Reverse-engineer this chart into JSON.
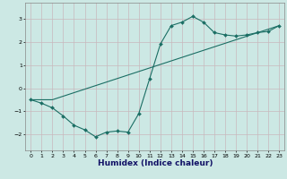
{
  "xlabel": "Humidex (Indice chaleur)",
  "bg_color": "#cce8e4",
  "line_color": "#1a6e64",
  "grid_color": "#c8b8bc",
  "xlim": [
    -0.5,
    23.5
  ],
  "ylim": [
    -2.7,
    3.7
  ],
  "xticks": [
    0,
    1,
    2,
    3,
    4,
    5,
    6,
    7,
    8,
    9,
    10,
    11,
    12,
    13,
    14,
    15,
    16,
    17,
    18,
    19,
    20,
    21,
    22,
    23
  ],
  "yticks": [
    -2,
    -1,
    0,
    1,
    2,
    3
  ],
  "curve1_x": [
    0,
    1,
    2,
    3,
    4,
    5,
    6,
    7,
    8,
    9,
    10,
    11,
    12,
    13,
    14,
    15,
    16,
    17,
    18,
    19,
    20,
    21,
    22,
    23
  ],
  "curve1_y": [
    -0.5,
    -0.65,
    -0.85,
    -1.2,
    -1.6,
    -1.8,
    -2.1,
    -1.9,
    -1.85,
    -1.9,
    -1.1,
    0.4,
    1.9,
    2.7,
    2.85,
    3.1,
    2.85,
    2.4,
    2.3,
    2.25,
    2.3,
    2.4,
    2.45,
    2.7
  ],
  "curve2_x": [
    0,
    2,
    23
  ],
  "curve2_y": [
    -0.5,
    -0.5,
    2.7
  ]
}
